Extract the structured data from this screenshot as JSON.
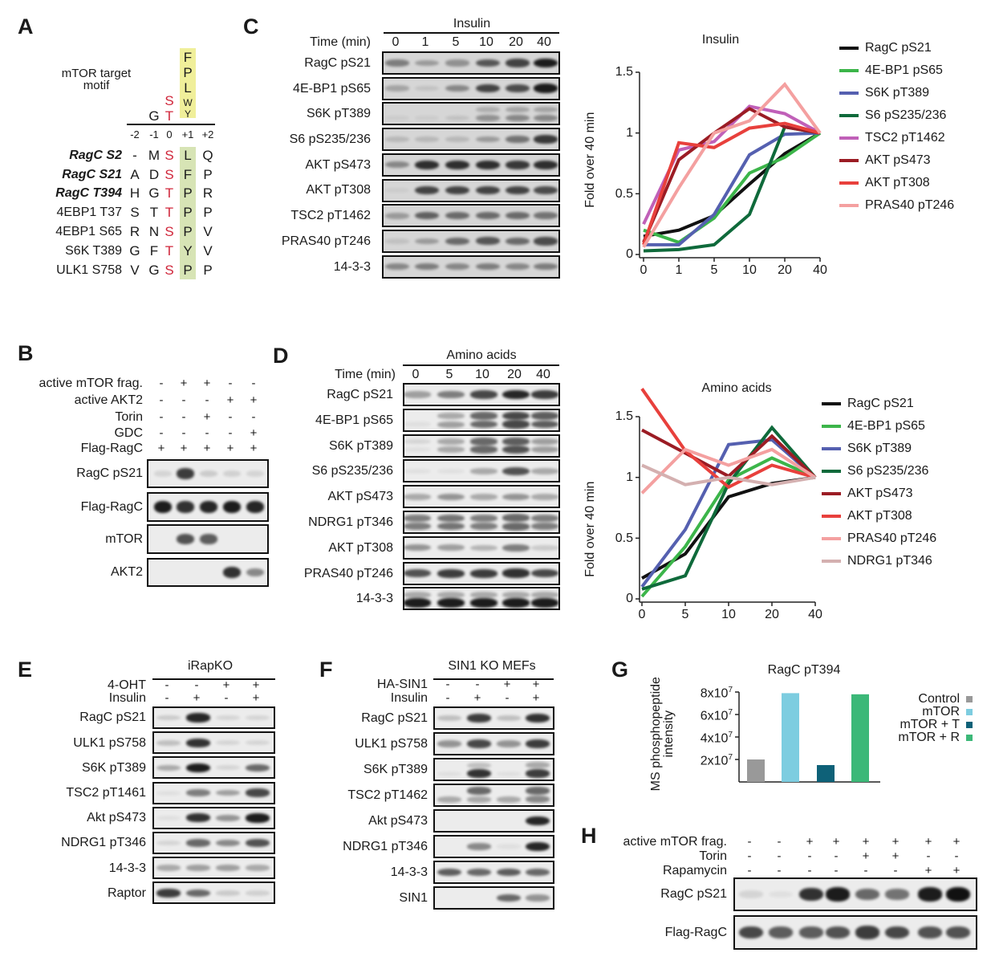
{
  "panels": {
    "A": {
      "letter": "A",
      "motif_title": [
        "mTOR target",
        "motif"
      ],
      "motif": {
        "plus1": [
          "F",
          "P",
          "L",
          "W",
          "Y"
        ],
        "zero": [
          "S",
          "T"
        ],
        "minus1": "G"
      },
      "positions": [
        "-2",
        "-1",
        "0",
        "+1",
        "+2"
      ],
      "rows": [
        {
          "name": "RagC S2",
          "bold": true,
          "residues": [
            "-",
            "M",
            "S",
            "L",
            "Q"
          ]
        },
        {
          "name": "RagC S21",
          "bold": true,
          "residues": [
            "A",
            "D",
            "S",
            "F",
            "P"
          ]
        },
        {
          "name": "RagC T394",
          "bold": true,
          "residues": [
            "H",
            "G",
            "T",
            "P",
            "R"
          ]
        },
        {
          "name": "4EBP1 T37",
          "bold": false,
          "residues": [
            "S",
            "T",
            "T",
            "P",
            "P"
          ]
        },
        {
          "name": "4EBP1 S65",
          "bold": false,
          "residues": [
            "R",
            "N",
            "S",
            "P",
            "V"
          ]
        },
        {
          "name": "S6K T389",
          "bold": false,
          "residues": [
            "G",
            "F",
            "T",
            "Y",
            "V"
          ]
        },
        {
          "name": "ULK1 S758",
          "bold": false,
          "residues": [
            "V",
            "G",
            "S",
            "P",
            "P"
          ]
        }
      ],
      "colors": {
        "phospho_site": "#d0263a",
        "motif_highlight": "#f0ef9a",
        "plus1_highlight": "#d7e4b5"
      }
    },
    "B": {
      "letter": "B",
      "conditions": [
        {
          "label": "active mTOR frag.",
          "values": [
            "-",
            "+",
            "+",
            "-",
            "-"
          ]
        },
        {
          "label": "active AKT2",
          "values": [
            "-",
            "-",
            "-",
            "+",
            "+"
          ]
        },
        {
          "label": "Torin",
          "values": [
            "-",
            "-",
            "+",
            "-",
            "-"
          ]
        },
        {
          "label": "GDC",
          "values": [
            "-",
            "-",
            "-",
            "-",
            "+"
          ]
        },
        {
          "label": "Flag-RagC",
          "values": [
            "+",
            "+",
            "+",
            "+",
            "+"
          ]
        }
      ],
      "blots": [
        {
          "label": "RagC pS21",
          "bands": [
            0.1,
            0.8,
            0.15,
            0.12,
            0.1
          ]
        },
        {
          "label": "Flag-RagC",
          "bands": [
            0.95,
            0.85,
            0.9,
            0.95,
            0.9
          ]
        },
        {
          "label": "mTOR",
          "bands": [
            0,
            0.7,
            0.65,
            0,
            0
          ]
        },
        {
          "label": "AKT2",
          "bands": [
            0,
            0,
            0,
            0.85,
            0.45
          ]
        }
      ]
    },
    "C": {
      "letter": "C",
      "header": "Insulin",
      "time_label": "Time (min)",
      "times": [
        "0",
        "1",
        "5",
        "10",
        "20",
        "40"
      ],
      "blots": [
        {
          "label": "RagC pS21",
          "bands": [
            0.45,
            0.3,
            0.35,
            0.65,
            0.75,
            0.95
          ]
        },
        {
          "label": "4E-BP1 pS65",
          "bands": [
            0.25,
            0.1,
            0.4,
            0.75,
            0.7,
            0.95
          ]
        },
        {
          "label": "S6K pT389",
          "bands": [
            0.05,
            0.05,
            0.1,
            0.35,
            0.4,
            0.4
          ],
          "upper": [
            0,
            0,
            0,
            0.2,
            0.25,
            0.25
          ]
        },
        {
          "label": "S6 pS235/236",
          "bands": [
            0.15,
            0.15,
            0.15,
            0.3,
            0.5,
            0.8
          ]
        },
        {
          "label": "AKT pS473",
          "bands": [
            0.4,
            0.85,
            0.85,
            0.85,
            0.8,
            0.85
          ]
        },
        {
          "label": "AKT pT308",
          "bands": [
            0.05,
            0.75,
            0.75,
            0.75,
            0.75,
            0.7
          ]
        },
        {
          "label": "TSC2 pT1462",
          "bands": [
            0.3,
            0.6,
            0.55,
            0.55,
            0.55,
            0.5
          ]
        },
        {
          "label": "PRAS40 pT246",
          "bands": [
            0.1,
            0.3,
            0.55,
            0.65,
            0.55,
            0.7
          ]
        },
        {
          "label": "14-3-3",
          "bands": [
            0.4,
            0.45,
            0.4,
            0.45,
            0.4,
            0.45
          ]
        }
      ]
    },
    "D": {
      "letter": "D",
      "header": "Amino acids",
      "time_label": "Time (min)",
      "times": [
        "0",
        "5",
        "10",
        "20",
        "40"
      ],
      "blots": [
        {
          "label": "RagC pS21",
          "bands": [
            0.35,
            0.5,
            0.75,
            0.9,
            0.8
          ]
        },
        {
          "label": "4E-BP1 pS65",
          "bands": [
            0.05,
            0.35,
            0.6,
            0.75,
            0.65
          ],
          "upper": [
            0,
            0.3,
            0.6,
            0.75,
            0.65
          ]
        },
        {
          "label": "S6K pT389",
          "bands": [
            0.05,
            0.3,
            0.6,
            0.7,
            0.35
          ],
          "upper": [
            0.1,
            0.3,
            0.6,
            0.65,
            0.35
          ]
        },
        {
          "label": "S6 pS235/236",
          "bands": [
            0.05,
            0.05,
            0.3,
            0.7,
            0.3
          ]
        },
        {
          "label": "AKT pS473",
          "bands": [
            0.3,
            0.4,
            0.3,
            0.4,
            0.3
          ]
        },
        {
          "label": "NDRG1 pT346",
          "bands": [
            0.5,
            0.55,
            0.5,
            0.6,
            0.5
          ],
          "upper": [
            0.5,
            0.55,
            0.5,
            0.6,
            0.5
          ]
        },
        {
          "label": "AKT pT308",
          "bands": [
            0.4,
            0.35,
            0.25,
            0.5,
            0.15
          ]
        },
        {
          "label": "PRAS40 pT246",
          "bands": [
            0.7,
            0.8,
            0.8,
            0.85,
            0.75
          ]
        },
        {
          "label": "14-3-3",
          "bands": [
            0.95,
            0.95,
            0.95,
            0.95,
            0.95
          ],
          "upper": [
            0.3,
            0.3,
            0.3,
            0.3,
            0.3
          ]
        }
      ]
    },
    "E": {
      "letter": "E",
      "header": "iRapKO",
      "conditions": [
        {
          "label": "4-OHT",
          "values": [
            "-",
            "-",
            "+",
            "+"
          ]
        },
        {
          "label": "Insulin",
          "values": [
            "-",
            "+",
            "-",
            "+"
          ]
        }
      ],
      "blots": [
        {
          "label": "RagC pS21",
          "bands": [
            0.15,
            0.9,
            0.1,
            0.1
          ]
        },
        {
          "label": "ULK1 pS758",
          "bands": [
            0.2,
            0.85,
            0.1,
            0.1
          ]
        },
        {
          "label": "S6K pT389",
          "bands": [
            0.3,
            0.95,
            0.1,
            0.6
          ]
        },
        {
          "label": "TSC2 pT1461",
          "bands": [
            0.05,
            0.5,
            0.35,
            0.75
          ]
        },
        {
          "label": "Akt pS473",
          "bands": [
            0.05,
            0.85,
            0.4,
            0.95
          ]
        },
        {
          "label": "NDRG1 pT346",
          "bands": [
            0.1,
            0.6,
            0.45,
            0.7
          ]
        },
        {
          "label": "14-3-3",
          "bands": [
            0.3,
            0.35,
            0.35,
            0.3
          ]
        },
        {
          "label": "Raptor",
          "bands": [
            0.8,
            0.6,
            0.15,
            0.12
          ]
        }
      ]
    },
    "F": {
      "letter": "F",
      "header": "SIN1 KO MEFs",
      "conditions": [
        {
          "label": "HA-SIN1",
          "values": [
            "-",
            "-",
            "+",
            "+"
          ]
        },
        {
          "label": "Insulin",
          "values": [
            "-",
            "+",
            "-",
            "+"
          ]
        }
      ],
      "blots": [
        {
          "label": "RagC pS21",
          "bands": [
            0.2,
            0.8,
            0.2,
            0.85
          ]
        },
        {
          "label": "ULK1 pS758",
          "bands": [
            0.4,
            0.75,
            0.4,
            0.8
          ]
        },
        {
          "label": "S6K pT389",
          "bands": [
            0.05,
            0.85,
            0.05,
            0.8
          ],
          "upper": [
            0,
            0.2,
            0,
            0.3
          ]
        },
        {
          "label": "TSC2 pT1462",
          "bands": [
            0.3,
            0.3,
            0.3,
            0.45
          ],
          "upper": [
            0,
            0.6,
            0,
            0.6
          ]
        },
        {
          "label": "Akt pS473",
          "bands": [
            0,
            0,
            0,
            0.9
          ]
        },
        {
          "label": "NDRG1 pT346",
          "bands": [
            0,
            0.45,
            0.05,
            0.9
          ]
        },
        {
          "label": "14-3-3",
          "bands": [
            0.65,
            0.6,
            0.65,
            0.6
          ]
        },
        {
          "label": "SIN1",
          "bands": [
            0,
            0,
            0.6,
            0.4
          ]
        }
      ]
    },
    "G": {
      "letter": "G"
    },
    "H": {
      "letter": "H",
      "conditions": [
        {
          "label": "active mTOR frag.",
          "values": [
            "-",
            "-",
            "+",
            "+",
            "+",
            "+",
            "+",
            "+"
          ]
        },
        {
          "label": "Torin",
          "values": [
            "-",
            "-",
            "-",
            "-",
            "+",
            "+",
            "-",
            "-"
          ]
        },
        {
          "label": "Rapamycin",
          "values": [
            "-",
            "-",
            "-",
            "-",
            "-",
            "-",
            "+",
            "+"
          ]
        }
      ],
      "blots": [
        {
          "label": "RagC pS21",
          "bands": [
            0.1,
            0.05,
            0.85,
            0.95,
            0.6,
            0.55,
            0.95,
            1.0
          ]
        },
        {
          "label": "Flag-RagC",
          "bands": [
            0.75,
            0.65,
            0.65,
            0.7,
            0.8,
            0.75,
            0.7,
            0.7
          ]
        }
      ]
    }
  },
  "chart_data": [
    {
      "type": "line",
      "title": "Insulin",
      "xlabel": "",
      "ylabel": "Fold over 40 min",
      "x": [
        "0",
        "1",
        "5",
        "10",
        "20",
        "40"
      ],
      "ylim": [
        0,
        1.5
      ],
      "yticks": [
        0,
        0.5,
        1,
        1.5
      ],
      "legend": "right",
      "series": [
        {
          "name": "RagC pS21",
          "color": "#111111",
          "values": [
            0.15,
            0.2,
            0.32,
            0.58,
            0.83,
            1
          ]
        },
        {
          "name": "4E-BP1 pS65",
          "color": "#3cb54a",
          "values": [
            0.2,
            0.1,
            0.3,
            0.67,
            0.8,
            1
          ]
        },
        {
          "name": "S6K pT389",
          "color": "#5560b0",
          "values": [
            0.08,
            0.08,
            0.33,
            0.82,
            0.99,
            1
          ]
        },
        {
          "name": "S6 pS235/236",
          "color": "#0f6a3b",
          "values": [
            0.03,
            0.04,
            0.08,
            0.33,
            1.05,
            1
          ]
        },
        {
          "name": "TSC2 pT1462",
          "color": "#c060b8",
          "values": [
            0.25,
            0.86,
            0.93,
            1.22,
            1.16,
            1
          ]
        },
        {
          "name": "AKT pS473",
          "color": "#9b1c24",
          "values": [
            0.1,
            0.78,
            1.0,
            1.2,
            1.05,
            1
          ]
        },
        {
          "name": "AKT pT308",
          "color": "#e8403c",
          "values": [
            0.08,
            0.92,
            0.88,
            1.04,
            1.08,
            1
          ]
        },
        {
          "name": "PRAS40 pT246",
          "color": "#f4a0a0",
          "values": [
            0.06,
            0.55,
            1.0,
            1.1,
            1.4,
            1
          ]
        }
      ]
    },
    {
      "type": "line",
      "title": "Amino acids",
      "xlabel": "",
      "ylabel": "Fold over 40 min",
      "x": [
        "0",
        "5",
        "10",
        "20",
        "40"
      ],
      "ylim": [
        0,
        1.5
      ],
      "yticks": [
        0,
        0.5,
        1,
        1.5
      ],
      "legend": "right",
      "series": [
        {
          "name": "RagC pS21",
          "color": "#111111",
          "values": [
            0.17,
            0.37,
            0.84,
            0.95,
            1
          ]
        },
        {
          "name": "4E-BP1 pS65",
          "color": "#3cb54a",
          "values": [
            0.02,
            0.43,
            0.98,
            1.16,
            1
          ]
        },
        {
          "name": "S6K pT389",
          "color": "#5560b0",
          "values": [
            0.1,
            0.57,
            1.27,
            1.31,
            1
          ]
        },
        {
          "name": "S6 pS235/236",
          "color": "#0f6a3b",
          "values": [
            0.08,
            0.19,
            0.95,
            1.41,
            1
          ]
        },
        {
          "name": "AKT pS473",
          "color": "#9b1c24",
          "values": [
            1.39,
            1.2,
            1.01,
            1.34,
            1
          ]
        },
        {
          "name": "AKT pT308",
          "color": "#e8403c",
          "values": [
            1.73,
            1.22,
            0.92,
            1.1,
            1
          ]
        },
        {
          "name": "PRAS40 pT246",
          "color": "#f4a0a0",
          "values": [
            0.87,
            1.23,
            1.1,
            1.23,
            1
          ]
        },
        {
          "name": "NDRG1 pT346",
          "color": "#d4b0b0",
          "values": [
            1.1,
            0.94,
            1.0,
            0.94,
            1
          ]
        }
      ]
    },
    {
      "type": "bar",
      "title": "RagC pT394",
      "xlabel": "",
      "ylabel": [
        "MS phosphopeptide",
        "intensity"
      ],
      "categories": [
        "Control",
        "mTOR",
        "mTOR + T",
        "mTOR + R"
      ],
      "values": [
        20000000,
        79000000,
        15000000,
        78000000
      ],
      "colors": [
        "#999999",
        "#7dcde0",
        "#0e6178",
        "#3cb878"
      ],
      "ylim": [
        0,
        80000000
      ],
      "yticks": [
        20000000,
        40000000,
        60000000,
        80000000
      ],
      "ytick_labels": [
        {
          "base": "2x10",
          "exp": "7"
        },
        {
          "base": "4x10",
          "exp": "7"
        },
        {
          "base": "6x10",
          "exp": "7"
        },
        {
          "base": "8x10",
          "exp": "7"
        }
      ],
      "legend": "right"
    }
  ]
}
